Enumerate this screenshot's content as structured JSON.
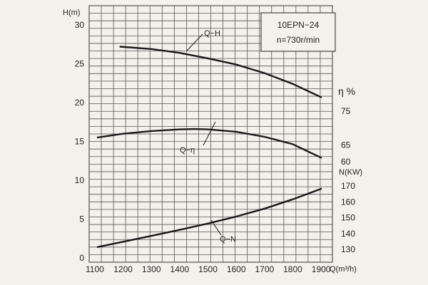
{
  "chart_data": {
    "type": "line",
    "info_box": {
      "model": "10EPN−24",
      "speed": "n=730r/min"
    },
    "x_axis": {
      "label": "Q(m³/h)",
      "range": [
        1080,
        1940
      ],
      "ticks": [
        1100,
        1200,
        1300,
        1400,
        1500,
        1600,
        1700,
        1800,
        1900
      ]
    },
    "head_axis": {
      "label": "H(m)",
      "range": [
        0,
        30
      ],
      "ticks": [
        0,
        5,
        10,
        15,
        20,
        25,
        30
      ]
    },
    "efficiency_axis": {
      "label": "η %",
      "ticks": [
        60,
        65,
        75
      ]
    },
    "power_axis": {
      "label": "N(KW)",
      "ticks": [
        130,
        140,
        150,
        160,
        170
      ]
    },
    "series": [
      {
        "name": "Q−H",
        "axis": "head",
        "x": [
          1190,
          1300,
          1400,
          1500,
          1600,
          1700,
          1800,
          1900
        ],
        "values": [
          27.2,
          26.9,
          26.4,
          25.7,
          24.9,
          23.8,
          22.4,
          20.7
        ]
      },
      {
        "name": "Q−η",
        "axis": "efficiency",
        "x": [
          1110,
          1200,
          1300,
          1400,
          1450,
          1500,
          1600,
          1700,
          1800,
          1900
        ],
        "values": [
          67.2,
          68.3,
          69.1,
          69.6,
          69.7,
          69.6,
          68.9,
          67.4,
          65.2,
          61.2
        ]
      },
      {
        "name": "Q−N",
        "axis": "power",
        "x": [
          1110,
          1200,
          1300,
          1400,
          1500,
          1600,
          1700,
          1800,
          1900
        ],
        "values": [
          131.5,
          134.8,
          138.5,
          142.3,
          146.3,
          150.7,
          155.7,
          161.6,
          168.2
        ]
      }
    ]
  }
}
